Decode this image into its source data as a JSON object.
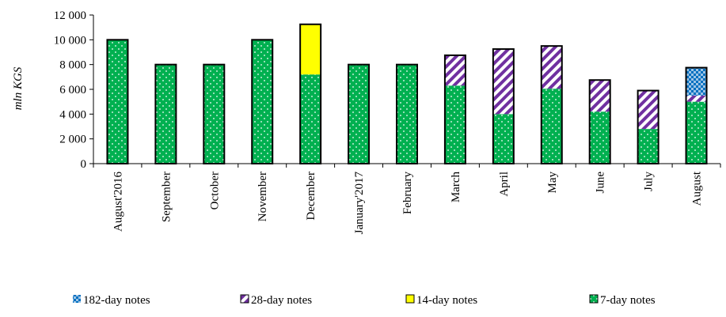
{
  "chart_data": {
    "type": "bar",
    "stacked": true,
    "ylabel": "mln  KGS",
    "ylim": [
      0,
      12000
    ],
    "yticks": [
      0,
      2000,
      4000,
      6000,
      8000,
      10000,
      12000
    ],
    "ytick_labels": [
      "0",
      "2 000",
      "4 000",
      "6 000",
      "8 000",
      "10 000",
      "12 000"
    ],
    "categories": [
      "August'2016",
      "September",
      "October",
      "November",
      "December",
      "January'2017",
      "February",
      "March",
      "April",
      "May",
      "June",
      "July",
      "August"
    ],
    "series": [
      {
        "name": "7-day notes",
        "color": "#00b050",
        "pattern": "dots",
        "values": [
          10000,
          8000,
          8000,
          10000,
          7200,
          8000,
          8000,
          6300,
          4000,
          6050,
          4200,
          2800,
          5000
        ]
      },
      {
        "name": "14-day notes",
        "color": "#ffff00",
        "pattern": "solid",
        "values": [
          0,
          0,
          0,
          0,
          4050,
          0,
          0,
          0,
          0,
          0,
          0,
          0,
          0
        ]
      },
      {
        "name": "28-day notes",
        "color": "#7030a0",
        "pattern": "diagonal-stripes",
        "values": [
          0,
          0,
          0,
          0,
          0,
          0,
          0,
          2450,
          5250,
          3450,
          2550,
          3100,
          500
        ]
      },
      {
        "name": "182-day notes",
        "color": "#0070c0",
        "pattern": "checker",
        "values": [
          0,
          0,
          0,
          0,
          0,
          0,
          0,
          0,
          0,
          0,
          0,
          0,
          2250
        ]
      }
    ],
    "legend": {
      "position": "bottom",
      "order": [
        "182-day notes",
        "28-day notes",
        "14-day notes",
        "7-day notes"
      ]
    },
    "grid": false
  }
}
